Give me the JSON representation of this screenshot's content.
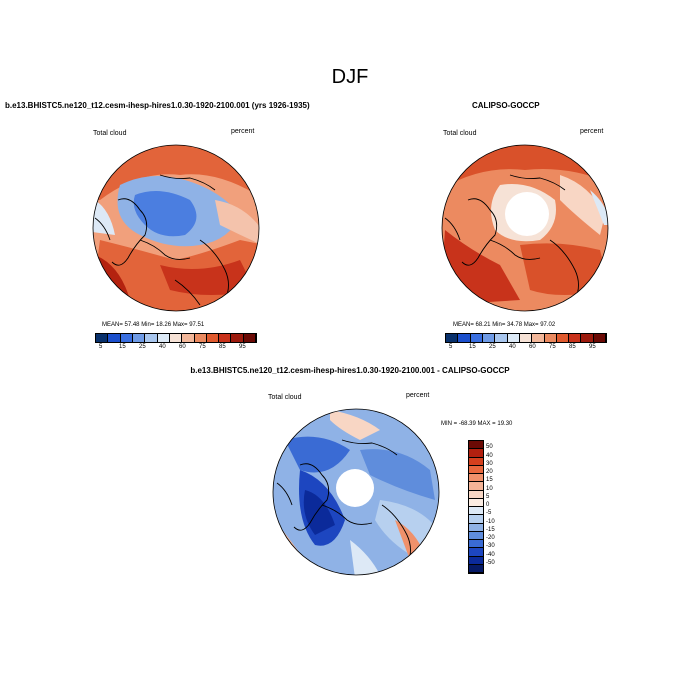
{
  "figure": {
    "title": "DJF"
  },
  "panels": [
    {
      "id": "model",
      "title": "b.e13.BHISTC5.ne120_t12.cesm-ihesp-hires1.0.30-1920-2100.001 (yrs 1926-1935)",
      "left_label": "Total cloud",
      "right_label": "percent",
      "stats": "MEAN=  57.48  Min=  18.26  Max=  97.51"
    },
    {
      "id": "obs",
      "title": "CALIPSO-GOCCP",
      "left_label": "Total cloud",
      "right_label": "percent",
      "stats": "MEAN=  68.21  Min=  34.78  Max=  97.02"
    },
    {
      "id": "diff",
      "title": "b.e13.BHISTC5.ne120_t12.cesm-ihesp-hires1.0.30-1920-2100.001 - CALIPSO-GOCCP",
      "left_label": "Total cloud",
      "right_label": "percent",
      "stats": "MIN = -68.39 MAX =  19.30"
    }
  ],
  "colorbar_abs": {
    "labels": [
      "5",
      "15",
      "25",
      "40",
      "60",
      "75",
      "85",
      "95"
    ],
    "colors": [
      "#08306b",
      "#1b4fcc",
      "#3a6fe0",
      "#6f9be6",
      "#a8c6ee",
      "#dce9f6",
      "#f6e2d6",
      "#f2b79a",
      "#eb8a60",
      "#e05a2e",
      "#c9321b",
      "#9c1a0d",
      "#6b0a05"
    ]
  },
  "colorbar_diff": {
    "labels": [
      "50",
      "40",
      "30",
      "20",
      "15",
      "10",
      "5",
      "0",
      "-5",
      "-10",
      "-15",
      "-20",
      "-30",
      "-40",
      "-50"
    ],
    "colors": [
      "#6b0a05",
      "#b2200f",
      "#d4401e",
      "#e8683e",
      "#f0916b",
      "#f4b497",
      "#f8d6c4",
      "#fbece2",
      "#dde9f6",
      "#b7d0ef",
      "#8fb2e6",
      "#5f8ddc",
      "#3a6bd4",
      "#1d46c0",
      "#0b2a9a",
      "#061a66"
    ]
  }
}
